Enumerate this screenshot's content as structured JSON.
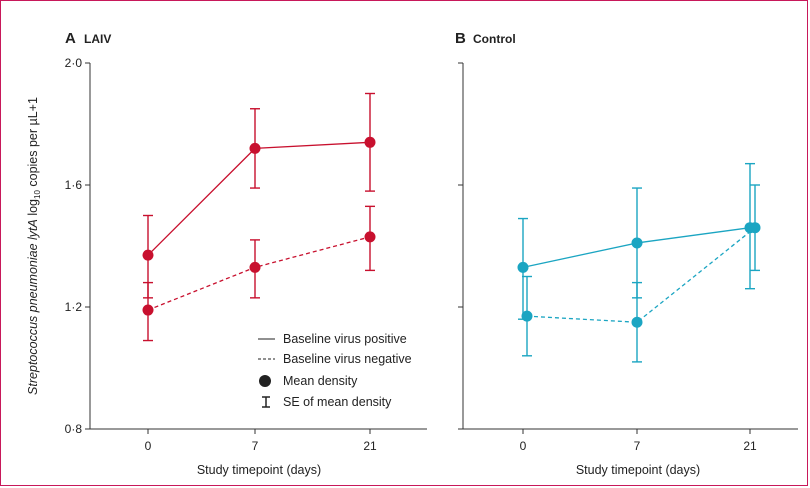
{
  "chart_data": [
    {
      "type": "line",
      "panel_letter": "A",
      "panel_name": "LAIV",
      "xlabel": "Study timepoint (days)",
      "ylabel_parts": [
        "Streptococcus pneumoniae",
        " lytA",
        " log",
        "10",
        " copies per µL+1"
      ],
      "x_categories": [
        "0",
        "7",
        "21"
      ],
      "y_ticks": [
        "0·8",
        "1·2",
        "1·6",
        "2·0"
      ],
      "ylim": [
        0.8,
        2.0
      ],
      "color": "#c8102e",
      "series": [
        {
          "name": "Baseline virus positive",
          "dash": "solid",
          "points": [
            {
              "x": "0",
              "mean": 1.37,
              "lo": 1.23,
              "hi": 1.5
            },
            {
              "x": "7",
              "mean": 1.72,
              "lo": 1.59,
              "hi": 1.85
            },
            {
              "x": "21",
              "mean": 1.74,
              "lo": 1.58,
              "hi": 1.9
            }
          ]
        },
        {
          "name": "Baseline virus negative",
          "dash": "dashed",
          "points": [
            {
              "x": "0",
              "mean": 1.19,
              "lo": 1.09,
              "hi": 1.28
            },
            {
              "x": "7",
              "mean": 1.33,
              "lo": 1.23,
              "hi": 1.42
            },
            {
              "x": "21",
              "mean": 1.43,
              "lo": 1.32,
              "hi": 1.53
            }
          ]
        }
      ],
      "legend": {
        "items": [
          {
            "symbol": "solid-line",
            "label": "Baseline virus positive"
          },
          {
            "symbol": "dashed-line",
            "label": "Baseline virus negative"
          },
          {
            "symbol": "dot",
            "label": "Mean density"
          },
          {
            "symbol": "error-bar",
            "label": "SE of mean density"
          }
        ]
      }
    },
    {
      "type": "line",
      "panel_letter": "B",
      "panel_name": "Control",
      "xlabel": "Study timepoint (days)",
      "x_categories": [
        "0",
        "7",
        "21"
      ],
      "ylim": [
        0.8,
        2.0
      ],
      "color": "#1ba5c2",
      "series": [
        {
          "name": "Baseline virus positive",
          "dash": "solid",
          "points": [
            {
              "x": "0",
              "mean": 1.33,
              "lo": 1.16,
              "hi": 1.49
            },
            {
              "x": "7",
              "mean": 1.41,
              "lo": 1.23,
              "hi": 1.59
            },
            {
              "x": "21",
              "mean": 1.46,
              "lo": 1.26,
              "hi": 1.67
            }
          ]
        },
        {
          "name": "Baseline virus negative",
          "dash": "dashed",
          "points": [
            {
              "x": "0",
              "mean": 1.17,
              "lo": 1.04,
              "hi": 1.3
            },
            {
              "x": "7",
              "mean": 1.15,
              "lo": 1.02,
              "hi": 1.28
            },
            {
              "x": "21",
              "mean": 1.46,
              "lo": 1.32,
              "hi": 1.6
            }
          ]
        }
      ]
    }
  ]
}
